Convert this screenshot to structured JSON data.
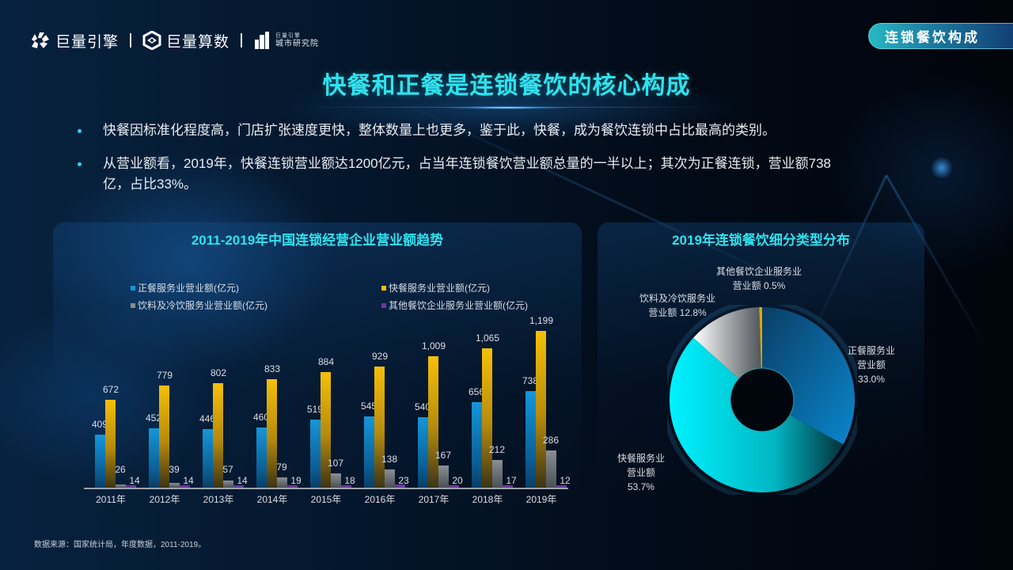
{
  "header": {
    "logos": [
      {
        "icon": "juliang-engine-logo-icon",
        "label": "巨量引擎"
      },
      {
        "icon": "juliang-suanshu-logo-icon",
        "label": "巨量算数"
      },
      {
        "icon": "city-institute-logo-icon",
        "label_top": "巨量引擎",
        "label_bottom": "城市研究院"
      }
    ],
    "section_tag": "连锁餐饮构成"
  },
  "page_title": "快餐和正餐是连锁餐饮的核心构成",
  "bullets": [
    "快餐因标准化程度高，门店扩张速度更快，整体数量上也更多，鉴于此，快餐，成为餐饮连锁中占比最高的类别。",
    "从营业额看，2019年，快餐连锁营业额达1200亿元，占当年连锁餐饮营业额总量的一半以上；其次为正餐连锁，营业额738亿，占比33%。"
  ],
  "colors": {
    "title_cyan": "#2fe2ee",
    "formal_dining": "#1596da",
    "fast_food": "#f5bf0a",
    "beverage": "#8a8f94",
    "other": "#6a3a9c",
    "donut_fast_food": "#00e5f0",
    "donut_formal": "#0a7fc0",
    "donut_beverage": "#c9ccd0",
    "donut_other": "#e0a800"
  },
  "chart_data": [
    {
      "type": "bar",
      "title": "2011-2019年中国连锁经营企业营业额趋势",
      "xlabel": "",
      "ylabel": "",
      "grid": false,
      "legend_position": "top",
      "categories": [
        "2011年",
        "2012年",
        "2013年",
        "2014年",
        "2015年",
        "2016年",
        "2017年",
        "2018年",
        "2019年"
      ],
      "series": [
        {
          "name": "正餐服务业营业额(亿元)",
          "values": [
            409,
            452,
            446,
            460,
            519,
            545,
            540,
            656,
            738
          ]
        },
        {
          "name": "快餐服务业营业额(亿元)",
          "values": [
            672,
            779,
            802,
            833,
            884,
            929,
            1009,
            1065,
            1199
          ]
        },
        {
          "name": "饮料及冷饮服务业营业额(亿元)",
          "values": [
            26,
            39,
            57,
            79,
            107,
            138,
            167,
            212,
            286
          ]
        },
        {
          "name": "其他餐饮企业服务业营业额(亿元)",
          "values": [
            14,
            14,
            14,
            19,
            18,
            23,
            20,
            17,
            12
          ]
        }
      ],
      "value_labels": [
        [
          "409",
          "452",
          "446",
          "460",
          "519",
          "545",
          "540",
          "656",
          "738"
        ],
        [
          "672",
          "779",
          "802",
          "833",
          "884",
          "929",
          "1,009",
          "1,065",
          "1,199"
        ],
        [
          "26",
          "39",
          "57",
          "79",
          "107",
          "138",
          "167",
          "212",
          "286"
        ],
        [
          "14",
          "14",
          "14",
          "19",
          "18",
          "23",
          "20",
          "17",
          "12"
        ]
      ],
      "ylim": [
        0,
        1300
      ]
    },
    {
      "type": "pie",
      "subtype": "donut",
      "title": "2019年连锁餐饮细分类型分布",
      "categories": [
        "正餐服务业营业额",
        "快餐服务业营业额",
        "饮料及冷饮服务业营业额",
        "其他餐饮企业服务业营业额"
      ],
      "values": [
        33.0,
        53.7,
        12.8,
        0.5
      ],
      "labels": [
        [
          "正餐服务业",
          "营业额",
          "33.0%"
        ],
        [
          "快餐服务业",
          "营业额",
          "53.7%"
        ],
        [
          "饮料及冷饮服务业",
          "营业额 12.8%"
        ],
        [
          "其他餐饮企业服务业",
          "营业额 0.5%"
        ]
      ]
    }
  ],
  "source_note": "数据来源：国家统计局，年度数据，2011-2019。"
}
